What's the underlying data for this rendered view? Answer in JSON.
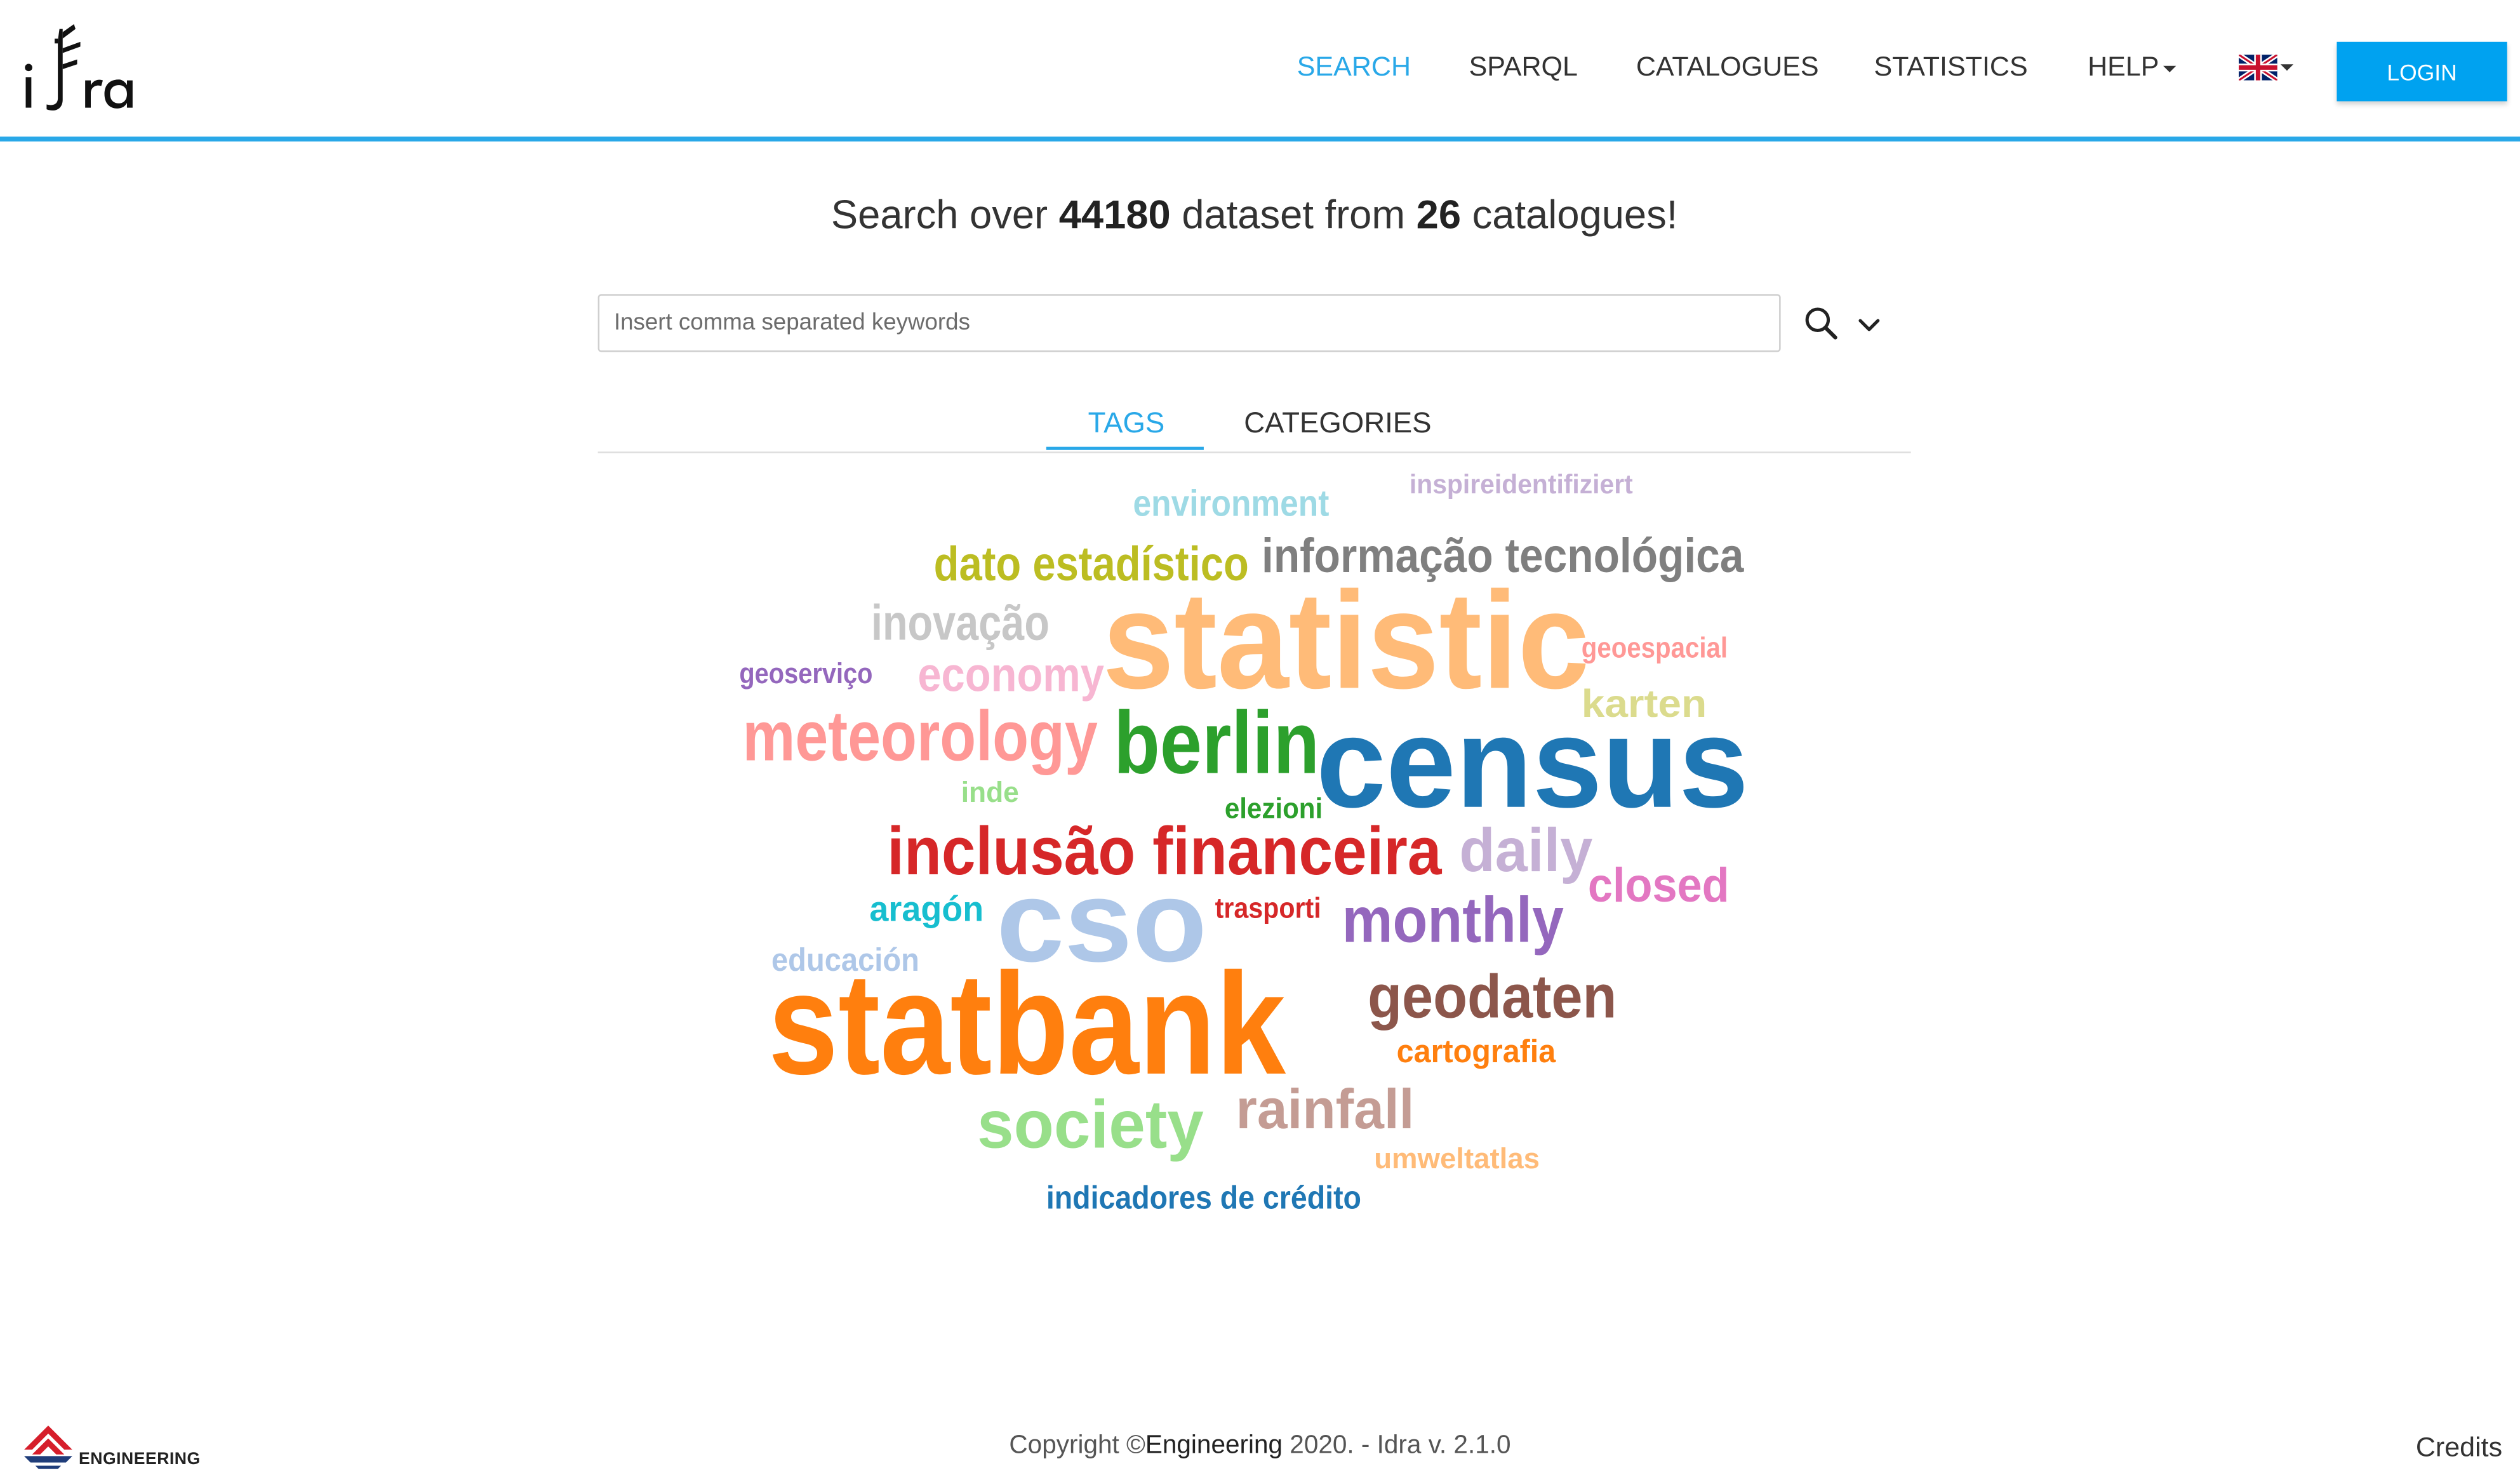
{
  "navbar": {
    "logo_text": "idra",
    "items": [
      {
        "label": "SEARCH",
        "active": true
      },
      {
        "label": "SPARQL",
        "active": false
      },
      {
        "label": "CATALOGUES",
        "active": false
      },
      {
        "label": "STATISTICS",
        "active": false
      },
      {
        "label": "HELP",
        "active": false
      }
    ],
    "language_icon": "uk-flag-icon",
    "login_label": "LOGIN",
    "accent_color": "#29a8e8",
    "login_color": "#00a2f0"
  },
  "headline": {
    "prefix": "Search over ",
    "dataset_count": "44180",
    "middle": " dataset from ",
    "catalogue_count": "26",
    "suffix": " catalogues!"
  },
  "search": {
    "placeholder": "Insert comma separated keywords",
    "value": "",
    "search_icon": "search-icon",
    "expand_icon": "chevron-down-icon"
  },
  "tabs": [
    {
      "label": "TAGS",
      "active": true
    },
    {
      "label": "CATEGORIES",
      "active": false
    }
  ],
  "word_cloud": [
    {
      "text": "inspireidentifiziert",
      "color": "#c5b0d5"
    },
    {
      "text": "environment",
      "color": "#9edae5"
    },
    {
      "text": "dato estadístico",
      "color": "#bcbd22"
    },
    {
      "text": "informação tecnológica",
      "color": "#7f7f7f"
    },
    {
      "text": "inovação",
      "color": "#c7c7c7"
    },
    {
      "text": "statistic",
      "color": "#ffbb78"
    },
    {
      "text": "geoserviço",
      "color": "#9467bd"
    },
    {
      "text": "economy",
      "color": "#f7b6d2"
    },
    {
      "text": "geoespacial",
      "color": "#ff9896"
    },
    {
      "text": "karten",
      "color": "#dbdb8d"
    },
    {
      "text": "meteorology",
      "color": "#ff9896"
    },
    {
      "text": "berlin",
      "color": "#2ca02c"
    },
    {
      "text": "census",
      "color": "#1f77b4"
    },
    {
      "text": "inde",
      "color": "#98df8a"
    },
    {
      "text": "elezioni",
      "color": "#2ca02c"
    },
    {
      "text": "inclusão financeira",
      "color": "#d62728"
    },
    {
      "text": "daily",
      "color": "#c5b0d5"
    },
    {
      "text": "closed",
      "color": "#e377c2"
    },
    {
      "text": "cso",
      "color": "#aec7e8"
    },
    {
      "text": "aragón",
      "color": "#17becf"
    },
    {
      "text": "trasporti",
      "color": "#d62728"
    },
    {
      "text": "monthly",
      "color": "#9467bd"
    },
    {
      "text": "educación",
      "color": "#aec7e8"
    },
    {
      "text": "geodaten",
      "color": "#8c564b"
    },
    {
      "text": "statbank",
      "color": "#ff7f0e"
    },
    {
      "text": "cartografia",
      "color": "#ff7f0e"
    },
    {
      "text": "society",
      "color": "#98df8a"
    },
    {
      "text": "rainfall",
      "color": "#c49c94"
    },
    {
      "text": "umweltatlas",
      "color": "#ffbb78"
    },
    {
      "text": "indicadores de crédito",
      "color": "#1f77b4"
    }
  ],
  "footer": {
    "company_logo": "engineering-logo",
    "company_label": "ENGINEERING",
    "copyright_prefix": "Copyright ©",
    "copyright_brand": "Engineering",
    "copyright_suffix": " 2020. - Idra v. 2.1.0",
    "credits_label": "Credits"
  }
}
